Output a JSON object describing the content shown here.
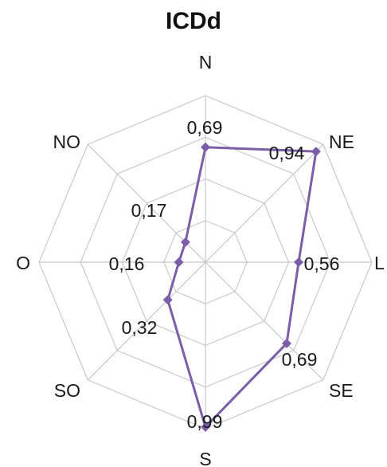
{
  "chart_data": {
    "type": "radar",
    "title": "ICDd",
    "categories": [
      "N",
      "NE",
      "L",
      "SE",
      "S",
      "SO",
      "O",
      "NO"
    ],
    "values": [
      0.69,
      0.94,
      0.56,
      0.69,
      0.99,
      0.32,
      0.16,
      0.17
    ],
    "value_labels": [
      "0,69",
      "0,94",
      "0,56",
      "0,69",
      "0,99",
      "0,32",
      "0,16",
      "0,17"
    ],
    "range": [
      0,
      1
    ],
    "grid": true,
    "legend": "none",
    "series_color": "#7b5ea7",
    "grid_color": "#c8c8c8"
  }
}
